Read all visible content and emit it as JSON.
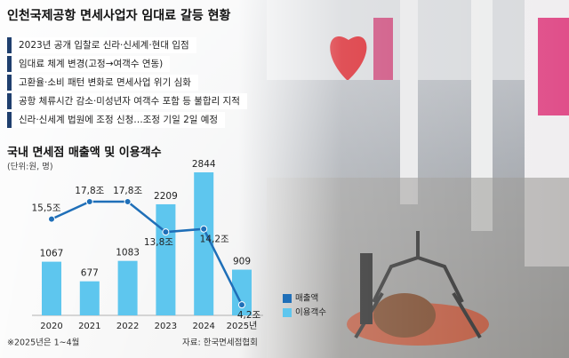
{
  "title": "인천국제공항 면세사업자 임대료 갈등 현황",
  "bullets": [
    "2023년 공개 입찰로 신라·신세계·현대 입점",
    "임대료 체계 변경(고정→여객수 연동)",
    "고환율·소비 패턴 변화로 면세사업 위기 심화",
    "공항 체류시간 감소·미성년자 여객수 포함 등 불합리 지적",
    "신라·신세계 법원에 조정 신청…조정 기일 2일 예정"
  ],
  "chart_data": {
    "type": "combo",
    "title": "국내 면세점 매출액 및 이용객수",
    "unit": "(단위:원, 명)",
    "categories": [
      "2020",
      "2021",
      "2022",
      "2023",
      "2024",
      "2025년"
    ],
    "series": [
      {
        "name": "매출액",
        "type": "line",
        "color": "#1f6fb8",
        "values": [
          15.5,
          17.8,
          17.8,
          13.8,
          14.2,
          4.2
        ],
        "value_labels": [
          "15,5조",
          "17,8조",
          "17,8조",
          "13,8조",
          "14,2조",
          "4,2조"
        ]
      },
      {
        "name": "이용객수",
        "type": "bar",
        "color": "#5ec6ee",
        "values": [
          1067,
          677,
          1083,
          2209,
          2844,
          909
        ]
      }
    ],
    "note": "※2025년은 1~4월",
    "source": "자료: 한국면세점협회"
  }
}
